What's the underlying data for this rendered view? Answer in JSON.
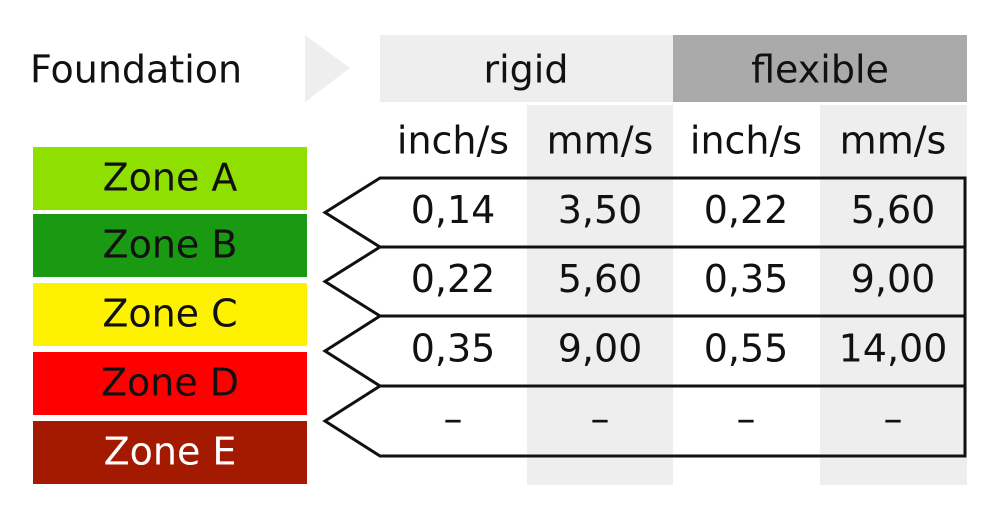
{
  "header": {
    "title": "Foundation",
    "groups": [
      "rigid",
      "flexible"
    ],
    "units": [
      "inch/s",
      "mm/s",
      "inch/s",
      "mm/s"
    ]
  },
  "zones": [
    "Zone A",
    "Zone B",
    "Zone C",
    "Zone D",
    "Zone E"
  ],
  "table": {
    "rows": [
      [
        "0,14",
        "3,50",
        "0,22",
        "5,60"
      ],
      [
        "0,22",
        "5,60",
        "0,35",
        "9,00"
      ],
      [
        "0,35",
        "9,00",
        "0,55",
        "14,00"
      ],
      [
        "–",
        "–",
        "–",
        "–"
      ]
    ]
  }
}
